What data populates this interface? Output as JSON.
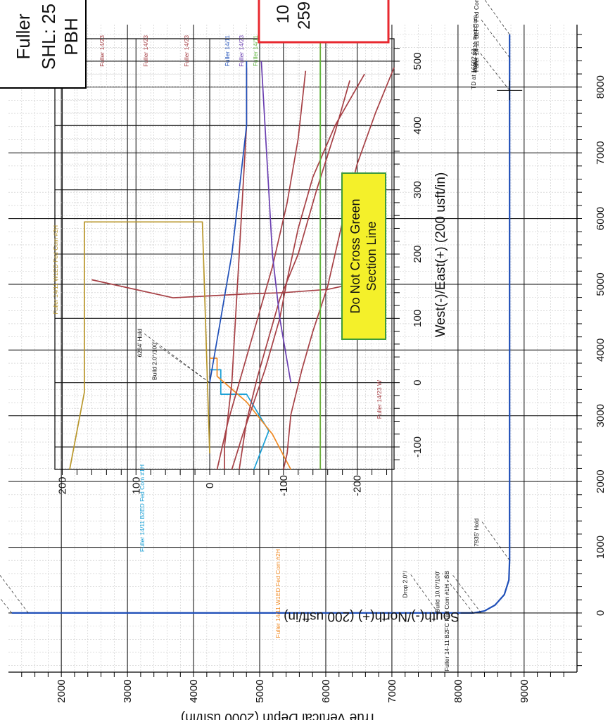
{
  "title_box": {
    "line1": "Fuller",
    "line2": "SHL: 25",
    "line3": "PBH"
  },
  "red_box": {
    "line1": "10",
    "line2": "259"
  },
  "warning_box": {
    "line1": "Do Not Cross Green",
    "line2": "Section Line"
  },
  "colors": {
    "blue": "#1f4fb8",
    "cyan": "#1aa0d6",
    "orange": "#f08a24",
    "olive": "#b8962a",
    "brownred": "#a64045",
    "purple": "#6a3fb0",
    "green": "#5fb53d",
    "section": "#6cad3c",
    "warning_bg": "#f4f02a",
    "warning_text": "#e8161b",
    "warning_border": "#3d9a3d",
    "red_box": "#e8282f"
  },
  "chart_data": [
    {
      "type": "line",
      "name": "plan-view",
      "xlabel": "West(-)/East(+) (200 usft/in)",
      "ylabel": "South(-)/North(+) (200 usft/in)",
      "xlim": [
        -135,
        535
      ],
      "ylim": [
        -250,
        210
      ],
      "x_ticks": [
        "-100",
        "0",
        "100",
        "200",
        "300",
        "400",
        "500"
      ],
      "y_ticks": [
        "-200",
        "-100",
        "0",
        "100",
        "200"
      ],
      "x_tick_values": [
        -100,
        0,
        100,
        200,
        300,
        400,
        500
      ],
      "y_tick_values": [
        -200,
        -100,
        0,
        100,
        200
      ],
      "annotations": [
        {
          "text": "Build 2.0°/100'",
          "x": 20,
          "y": 70
        },
        {
          "text": "6264' Hold",
          "x": 40,
          "y": 90
        }
      ],
      "wells": [
        {
          "label": "Fuller 14/11 B2ED Fed Com #1H",
          "color": "cyan",
          "x": [
            20,
            20,
            -18,
            -18,
            -75,
            -135
          ],
          "y": [
            0,
            -15,
            -15,
            -50,
            -80,
            -60
          ]
        },
        {
          "label": "Fuller 14/11 W1ED Fed Com #2H",
          "color": "orange",
          "x": [
            38,
            38,
            10,
            -10,
            -30,
            -80,
            -135
          ],
          "y": [
            0,
            -10,
            -10,
            -30,
            -50,
            -85,
            -110
          ]
        },
        {
          "label": "Fuller 14/23",
          "color": "brownred",
          "x": [
            490,
            400,
            300,
            200,
            100,
            0,
            -100,
            -135
          ],
          "y": [
            -50,
            -50,
            -45,
            -40,
            -35,
            -30,
            -20,
            -20
          ]
        },
        {
          "label": "Fuller 14/23",
          "color": "brownred",
          "x": [
            485,
            380,
            280,
            180,
            100,
            20,
            -60,
            -135
          ],
          "y": [
            -130,
            -120,
            -105,
            -85,
            -65,
            -45,
            -25,
            -10
          ]
        },
        {
          "label": "Fuller 14/23",
          "color": "brownred",
          "x": [
            470,
            390,
            300,
            200,
            130,
            70,
            10,
            -60,
            -135
          ],
          "y": [
            -190,
            -170,
            -145,
            -120,
            -95,
            -80,
            -65,
            -50,
            -40
          ]
        },
        {
          "label": "Fuller 14/23",
          "color": "brownred",
          "x": [
            490,
            420,
            340,
            250,
            150,
            80,
            20,
            -50,
            -110,
            -135
          ],
          "y": [
            -250,
            -225,
            -200,
            -180,
            -160,
            -140,
            -125,
            -110,
            -105,
            -100
          ]
        },
        {
          "label": "Fuller 14/23",
          "color": "brownred",
          "x": [
            480,
            400,
            320,
            240,
            160,
            100,
            60,
            20,
            -30,
            -80,
            -135
          ],
          "y": [
            -210,
            -170,
            -140,
            -120,
            -105,
            -95,
            -85,
            -75,
            -60,
            -45,
            -30
          ]
        },
        {
          "label": "Fuller 14/23 W",
          "color": "brownred",
          "x": [
            160,
            145,
            140,
            138,
            135,
            132,
            160
          ],
          "y": [
            -220,
            -160,
            -100,
            -50,
            0,
            50,
            160
          ]
        },
        {
          "label": "Fuller 14/11",
          "color": "blue",
          "x": [
            500,
            400,
            300,
            200,
            100,
            0
          ],
          "y": [
            -50,
            -50,
            -40,
            -30,
            -15,
            0
          ]
        },
        {
          "label": "Fuller 14/23",
          "color": "purple",
          "x": [
            500,
            400,
            300,
            200,
            100,
            0
          ],
          "y": [
            -70,
            -75,
            -80,
            -85,
            -95,
            -110
          ]
        },
        {
          "label": "Fuller 14/11",
          "color": "green",
          "x": [
            500,
            400,
            300,
            200,
            100,
            0
          ],
          "y": [
            -150,
            -150,
            -150,
            -150,
            -150,
            -150
          ]
        },
        {
          "label": "Fuller 14/11 W1ED Fed Com #2H",
          "color": "olive",
          "x": [
            -110,
            250,
            250,
            -15,
            -135
          ],
          "y": [
            0,
            10,
            170,
            170,
            190
          ]
        }
      ],
      "section_line": {
        "x": [
          -135,
          535
        ],
        "y": [
          -150,
          -150
        ]
      }
    },
    {
      "type": "line",
      "name": "vertical-section",
      "ylabel": "True Vertical Depth (2000 usft/in)",
      "xlim": [
        -900,
        8950
      ],
      "ylim": [
        1200,
        9800
      ],
      "x_ticks": [
        "0",
        "1000",
        "2000",
        "3000",
        "4000",
        "5000",
        "6000",
        "7000",
        "8000"
      ],
      "y_ticks": [
        "2000",
        "3000",
        "4000",
        "5000",
        "6000",
        "7000",
        "8000",
        "9000"
      ],
      "x_tick_values": [
        0,
        1000,
        2000,
        3000,
        4000,
        5000,
        6000,
        7000,
        8000
      ],
      "y_tick_values": [
        2000,
        3000,
        4000,
        5000,
        6000,
        7000,
        8000,
        9000
      ],
      "series": [
        {
          "label": "Fuller 14-11 B2FC Fed Com #1H - BB",
          "x": [
            0,
            0,
            30,
            120,
            280,
            500,
            800,
            1000,
            8000,
            8200,
            8400,
            8600,
            8800
          ],
          "y": [
            1250,
            8230,
            8400,
            8560,
            8700,
            8770,
            8780,
            8780,
            8780,
            8780,
            8780,
            8780,
            8780
          ]
        }
      ],
      "annotations": [
        {
          "text": "Build 2.0°/100'",
          "x": 0,
          "y": 1250
        },
        {
          "text": "6264' Hold",
          "x": 0,
          "y": 1500
        },
        {
          "text": "Drop 2.0°/",
          "x": 0,
          "y": 7700
        },
        {
          "text": "Build 10.0°/100'",
          "x": 0,
          "y": 8230
        },
        {
          "text": "Fuller 14-11 B2FC Fed Com #1H - BB",
          "x": 0,
          "y": 8350
        },
        {
          "text": "7935' Hold",
          "x": 800,
          "y": 8780
        },
        {
          "text": "TD at 16592.61",
          "x": 7950,
          "y": 8780
        },
        {
          "text": "Fuller 14/11 Fed Com",
          "x": 8450,
          "y": 8780
        },
        {
          "text": "Fuller 14-11 B2FC Fed Com #",
          "x": 8800,
          "y": 8780
        }
      ]
    }
  ]
}
